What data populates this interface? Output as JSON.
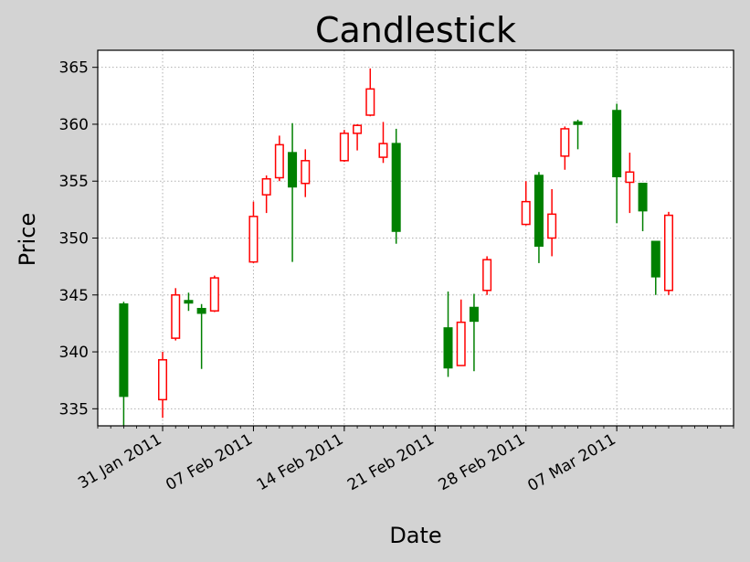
{
  "chart_data": {
    "type": "candlestick",
    "title": "Candlestick",
    "xlabel": "Date",
    "ylabel": "Price",
    "ylim": [
      333.5,
      366.5
    ],
    "xlim": [
      "2011-01-26",
      "2011-03-16"
    ],
    "grid": true,
    "colors": {
      "up": "#ff0000",
      "down": "#008000",
      "background": "#d3d3d3",
      "plot_bg": "#ffffff",
      "grid": "#b0b0b0"
    },
    "x_ticks": [
      {
        "date": "2011-01-31",
        "label": "31 Jan 2011"
      },
      {
        "date": "2011-02-07",
        "label": "07 Feb 2011"
      },
      {
        "date": "2011-02-14",
        "label": "14 Feb 2011"
      },
      {
        "date": "2011-02-21",
        "label": "21 Feb 2011"
      },
      {
        "date": "2011-02-28",
        "label": "28 Feb 2011"
      },
      {
        "date": "2011-03-07",
        "label": "07 Mar 2011"
      }
    ],
    "y_ticks": [
      335,
      340,
      345,
      350,
      355,
      360,
      365
    ],
    "candles": [
      {
        "date": "2011-01-28",
        "open": 344.2,
        "high": 344.4,
        "low": 333.5,
        "close": 336.1
      },
      {
        "date": "2011-01-31",
        "open": 335.8,
        "high": 340.0,
        "low": 334.2,
        "close": 339.3
      },
      {
        "date": "2011-02-01",
        "open": 341.2,
        "high": 345.6,
        "low": 341.0,
        "close": 345.0
      },
      {
        "date": "2011-02-02",
        "open": 344.5,
        "high": 345.2,
        "low": 343.6,
        "close": 344.3
      },
      {
        "date": "2011-02-03",
        "open": 343.8,
        "high": 344.2,
        "low": 338.5,
        "close": 343.4
      },
      {
        "date": "2011-02-04",
        "open": 343.6,
        "high": 346.7,
        "low": 343.5,
        "close": 346.5
      },
      {
        "date": "2011-02-07",
        "open": 347.9,
        "high": 353.2,
        "low": 347.8,
        "close": 351.9
      },
      {
        "date": "2011-02-08",
        "open": 353.8,
        "high": 355.5,
        "low": 352.2,
        "close": 355.2
      },
      {
        "date": "2011-02-09",
        "open": 355.3,
        "high": 359.0,
        "low": 355.0,
        "close": 358.2
      },
      {
        "date": "2011-02-10",
        "open": 357.5,
        "high": 360.1,
        "low": 347.9,
        "close": 354.5
      },
      {
        "date": "2011-02-11",
        "open": 354.8,
        "high": 357.8,
        "low": 353.6,
        "close": 356.8
      },
      {
        "date": "2011-02-14",
        "open": 356.8,
        "high": 359.5,
        "low": 356.7,
        "close": 359.2
      },
      {
        "date": "2011-02-15",
        "open": 359.2,
        "high": 360.0,
        "low": 357.7,
        "close": 359.9
      },
      {
        "date": "2011-02-16",
        "open": 360.8,
        "high": 364.9,
        "low": 360.7,
        "close": 363.1
      },
      {
        "date": "2011-02-17",
        "open": 357.1,
        "high": 360.2,
        "low": 356.6,
        "close": 358.3
      },
      {
        "date": "2011-02-18",
        "open": 358.3,
        "high": 359.6,
        "low": 349.5,
        "close": 350.6
      },
      {
        "date": "2011-02-22",
        "open": 342.1,
        "high": 345.3,
        "low": 337.8,
        "close": 338.6
      },
      {
        "date": "2011-02-23",
        "open": 338.8,
        "high": 344.6,
        "low": 338.8,
        "close": 342.6
      },
      {
        "date": "2011-02-24",
        "open": 343.9,
        "high": 345.1,
        "low": 338.3,
        "close": 342.7
      },
      {
        "date": "2011-02-25",
        "open": 345.4,
        "high": 348.4,
        "low": 345.0,
        "close": 348.1
      },
      {
        "date": "2011-02-28",
        "open": 351.2,
        "high": 355.0,
        "low": 351.1,
        "close": 353.2
      },
      {
        "date": "2011-03-01",
        "open": 355.5,
        "high": 355.8,
        "low": 347.8,
        "close": 349.3
      },
      {
        "date": "2011-03-02",
        "open": 350.0,
        "high": 354.3,
        "low": 348.4,
        "close": 352.1
      },
      {
        "date": "2011-03-03",
        "open": 357.2,
        "high": 359.8,
        "low": 356.0,
        "close": 359.6
      },
      {
        "date": "2011-03-04",
        "open": 360.2,
        "high": 360.4,
        "low": 357.8,
        "close": 360.0
      },
      {
        "date": "2011-03-07",
        "open": 361.2,
        "high": 361.8,
        "low": 351.3,
        "close": 355.4
      },
      {
        "date": "2011-03-08",
        "open": 354.9,
        "high": 357.5,
        "low": 352.2,
        "close": 355.8
      },
      {
        "date": "2011-03-09",
        "open": 354.8,
        "high": 354.8,
        "low": 350.6,
        "close": 352.4
      },
      {
        "date": "2011-03-10",
        "open": 349.7,
        "high": 349.7,
        "low": 345.0,
        "close": 346.6
      },
      {
        "date": "2011-03-11",
        "open": 345.4,
        "high": 352.3,
        "low": 345.0,
        "close": 352.0
      }
    ]
  }
}
